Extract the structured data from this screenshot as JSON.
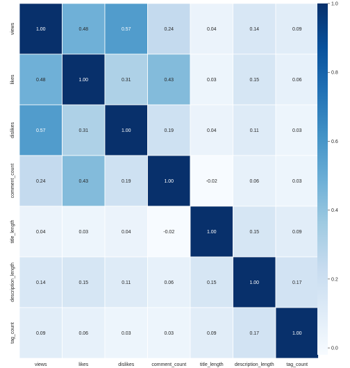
{
  "chart_data": {
    "type": "heatmap",
    "title": "",
    "xlabel": "",
    "ylabel": "",
    "x_labels": [
      "views",
      "likes",
      "dislikes",
      "comment_count",
      "title_length",
      "description_length",
      "tag_count"
    ],
    "y_labels": [
      "views",
      "likes",
      "dislikes",
      "comment_count",
      "title_length",
      "description_length",
      "tag_count"
    ],
    "matrix": [
      [
        1.0,
        0.48,
        0.57,
        0.24,
        0.04,
        0.14,
        0.09
      ],
      [
        0.48,
        1.0,
        0.31,
        0.43,
        0.03,
        0.15,
        0.06
      ],
      [
        0.57,
        0.31,
        1.0,
        0.19,
        0.04,
        0.11,
        0.03
      ],
      [
        0.24,
        0.43,
        0.19,
        1.0,
        -0.02,
        0.06,
        0.03
      ],
      [
        0.04,
        0.03,
        0.04,
        -0.02,
        1.0,
        0.15,
        0.09
      ],
      [
        0.14,
        0.15,
        0.11,
        0.06,
        0.15,
        1.0,
        0.17
      ],
      [
        0.09,
        0.06,
        0.03,
        0.03,
        0.09,
        0.17,
        1.0
      ]
    ],
    "value_format": "2 decimals",
    "annotations": true,
    "colormap": "Blues",
    "colorbar": {
      "range": [
        -0.02,
        1.0
      ],
      "ticks": [
        "0.0",
        "0.2",
        "0.4",
        "0.6",
        "0.8",
        "1.0"
      ],
      "tick_values": [
        0.0,
        0.2,
        0.4,
        0.6,
        0.8,
        1.0
      ],
      "placement": "right"
    },
    "grid": false
  }
}
